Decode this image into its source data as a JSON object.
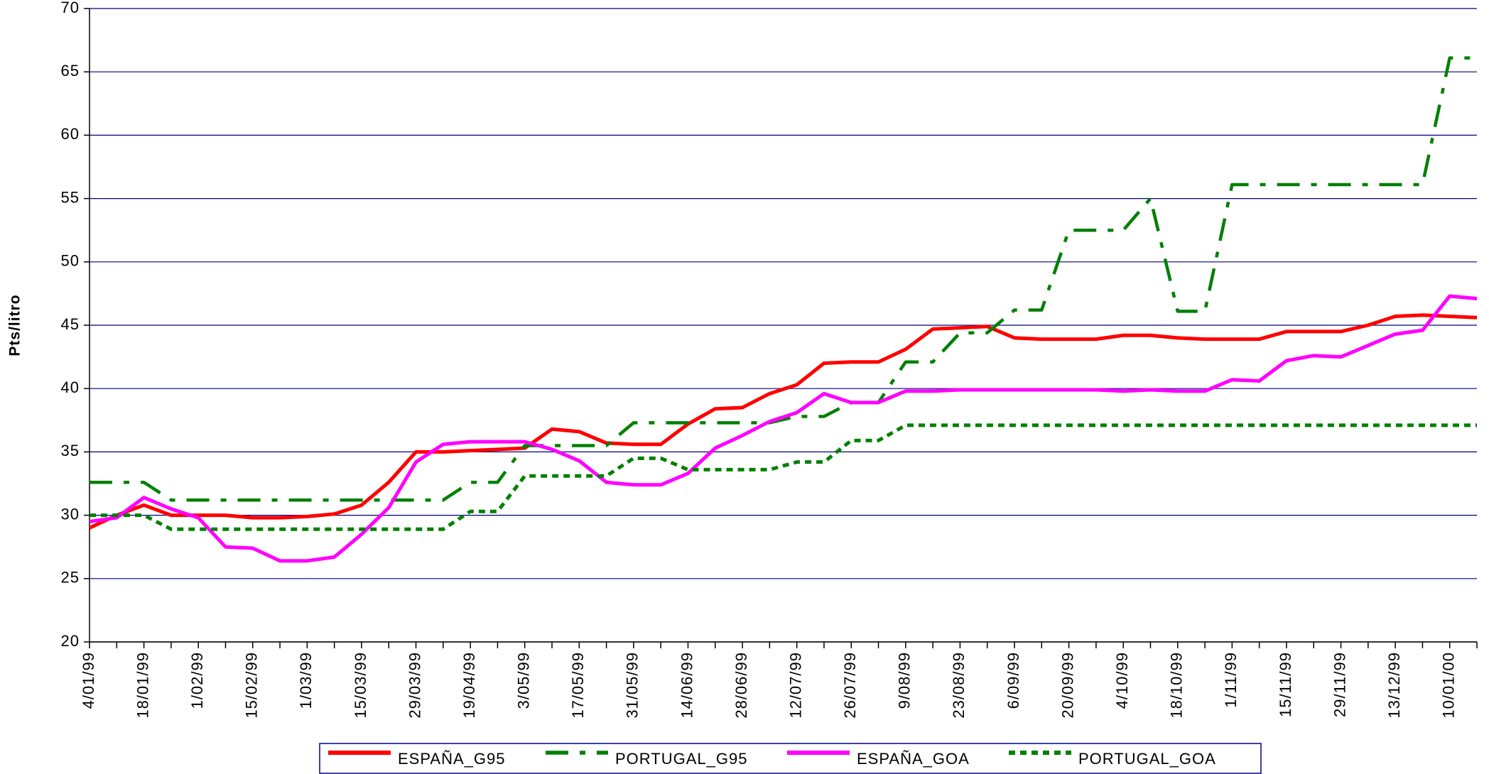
{
  "chart_data": {
    "type": "line",
    "y_label": "Pts/litro",
    "categories": [
      "4/01/99",
      null,
      "18/01/99",
      null,
      "1/02/99",
      null,
      "15/02/99",
      null,
      "1/03/99",
      null,
      "15/03/99",
      null,
      "29/03/99",
      null,
      "19/04/99",
      null,
      "3/05/99",
      null,
      "17/05/99",
      null,
      "31/05/99",
      null,
      "14/06/99",
      null,
      "28/06/99",
      null,
      "12/07/99",
      null,
      "26/07/99",
      null,
      "9/08/99",
      null,
      "23/08/99",
      null,
      "6/09/99",
      null,
      "20/09/99",
      null,
      "4/10/99",
      null,
      "18/10/99",
      null,
      "1/11/99",
      null,
      "15/11/99",
      null,
      "29/11/99",
      null,
      "13/12/99",
      null,
      "10/01/00",
      null
    ],
    "series": [
      {
        "name": "ESPAÑA_G95",
        "color": "#ff0000",
        "style": "solid",
        "values": [
          29,
          30,
          30.8,
          30,
          30,
          30,
          29.8,
          29.8,
          29.9,
          30.1,
          30.8,
          32.6,
          35,
          35,
          35.1,
          35.2,
          35.3,
          36.8,
          36.6,
          35.7,
          35.6,
          35.6,
          37.2,
          38.4,
          38.5,
          39.6,
          40.3,
          42,
          42.1,
          42.1,
          43.1,
          44.7,
          44.8,
          44.9,
          44,
          43.9,
          43.9,
          43.9,
          44.2,
          44.2,
          44,
          43.9,
          43.9,
          43.9,
          44.5,
          44.5,
          44.5,
          45,
          45.7,
          45.8,
          45.7,
          45.6
        ]
      },
      {
        "name": "PORTUGAL_G95",
        "color": "#008000",
        "style": "dashdot",
        "values": [
          32.6,
          32.6,
          32.6,
          31.2,
          31.2,
          31.2,
          31.2,
          31.2,
          31.2,
          31.2,
          31.2,
          31.2,
          31.2,
          31.2,
          32.6,
          32.6,
          35.5,
          35.5,
          35.5,
          35.5,
          37.3,
          37.3,
          37.3,
          37.3,
          37.3,
          37.3,
          37.8,
          37.8,
          38.9,
          38.9,
          42.1,
          42.1,
          44.4,
          44.4,
          46.2,
          46.2,
          52.5,
          52.5,
          52.5,
          55,
          46.1,
          46.1,
          56.1,
          56.1,
          56.1,
          56.1,
          56.1,
          56.1,
          56.1,
          56.1,
          66.1,
          66.1
        ]
      },
      {
        "name": "ESPAÑA_GOA",
        "color": "#ff00ff",
        "style": "solid",
        "values": [
          29.5,
          29.8,
          31.4,
          30.5,
          29.8,
          27.5,
          27.4,
          26.4,
          26.4,
          26.7,
          28.5,
          30.6,
          34.2,
          35.6,
          35.8,
          35.8,
          35.8,
          35.2,
          34.3,
          32.6,
          32.4,
          32.4,
          33.3,
          35.3,
          36.3,
          37.4,
          38.1,
          39.6,
          38.9,
          38.9,
          39.8,
          39.8,
          39.9,
          39.9,
          39.9,
          39.9,
          39.9,
          39.9,
          39.8,
          39.9,
          39.8,
          39.8,
          40.7,
          40.6,
          42.2,
          42.6,
          42.5,
          43.4,
          44.3,
          44.6,
          47.3,
          47.1
        ]
      },
      {
        "name": "PORTUGAL_GOA",
        "color": "#008000",
        "style": "dotted",
        "values": [
          30,
          30,
          30,
          28.9,
          28.9,
          28.9,
          28.9,
          28.9,
          28.9,
          28.9,
          28.9,
          28.9,
          28.9,
          28.9,
          30.3,
          30.3,
          33.1,
          33.1,
          33.1,
          33.1,
          34.5,
          34.5,
          33.6,
          33.6,
          33.6,
          33.6,
          34.2,
          34.2,
          35.9,
          35.9,
          37.1,
          37.1,
          37.1,
          37.1,
          37.1,
          37.1,
          37.1,
          37.1,
          37.1,
          37.1,
          37.1,
          37.1,
          37.1,
          37.1,
          37.1,
          37.1,
          37.1,
          37.1,
          37.1,
          37.1,
          37.1,
          37.1
        ]
      }
    ],
    "ylim": [
      20,
      70
    ],
    "yticks": [
      20,
      25,
      30,
      35,
      40,
      45,
      50,
      55,
      60,
      65,
      70
    ],
    "grid": true
  }
}
